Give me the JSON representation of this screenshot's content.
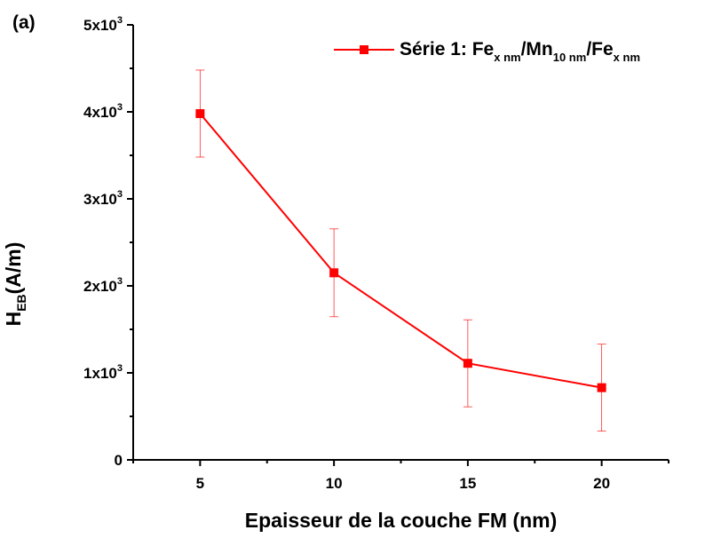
{
  "panel_label": "(a)",
  "chart_data": {
    "type": "line",
    "title": "",
    "xlabel": "Epaisseur de la couche FM (nm)",
    "ylabel_main": "H",
    "ylabel_sub": "EB",
    "ylabel_unit": "(A/m)",
    "xlim": [
      2.5,
      22.5
    ],
    "ylim": [
      0,
      5000
    ],
    "xticks": [
      5,
      10,
      15,
      20
    ],
    "yticks": [
      {
        "value": 0,
        "mantissa": "0",
        "exp": ""
      },
      {
        "value": 1000,
        "mantissa": "1x10",
        "exp": "3"
      },
      {
        "value": 2000,
        "mantissa": "2x10",
        "exp": "3"
      },
      {
        "value": 3000,
        "mantissa": "3x10",
        "exp": "3"
      },
      {
        "value": 4000,
        "mantissa": "4x10",
        "exp": "3"
      },
      {
        "value": 5000,
        "mantissa": "5x10",
        "exp": "3"
      }
    ],
    "grid": false,
    "legend_position": "top-right",
    "series": [
      {
        "name": "Série 1: Fe x nm /Mn 10 nm /Fe x nm",
        "color": "#ff0000",
        "x": [
          5,
          10,
          15,
          20
        ],
        "y": [
          3980,
          2150,
          1110,
          830
        ],
        "yerr": [
          500,
          505,
          500,
          500
        ]
      }
    ]
  },
  "legend": {
    "prefix": "Série 1: Fe",
    "sub1": "x nm",
    "mid1": "/Mn",
    "sub2": "10 nm",
    "mid2": "/Fe",
    "sub3": "x nm"
  }
}
